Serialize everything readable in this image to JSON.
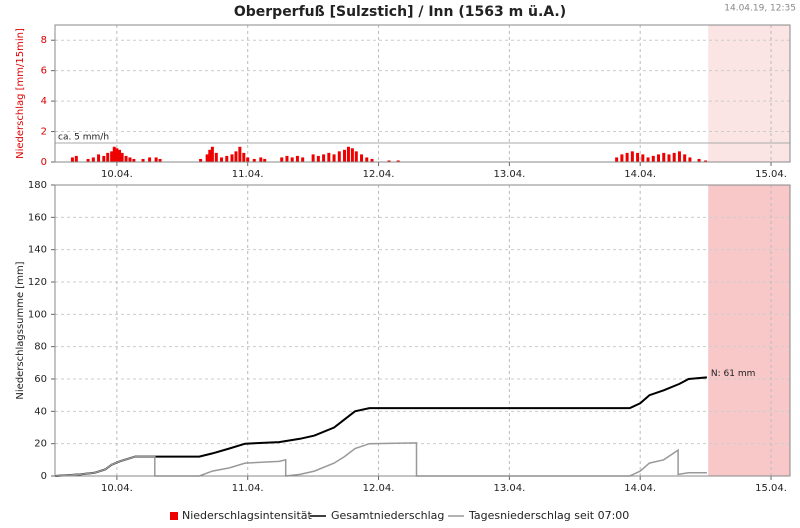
{
  "chart_data": [
    {
      "type": "bar",
      "title": "Oberperfuß [Sulzstich] / Inn (1563 m ü.A.)",
      "timestamp": "14.04.19, 12:35",
      "ylabel": "Niederschlag [mm/15min]",
      "xlim": [
        9.527,
        15.145
      ],
      "xticks": [
        {
          "value": 10,
          "label": "10.04."
        },
        {
          "value": 11,
          "label": "11.04."
        },
        {
          "value": 12,
          "label": "12.04."
        },
        {
          "value": 13,
          "label": "13.04."
        },
        {
          "value": 14,
          "label": "14.04."
        },
        {
          "value": 15,
          "label": "15.04."
        }
      ],
      "ylim": [
        0,
        9
      ],
      "yticks": [
        0,
        2,
        4,
        6,
        8
      ],
      "grid": true,
      "shade_from": 14.52,
      "shade_color": "#fbe4e4",
      "threshold": {
        "value": 1.25,
        "label": "ca. 5 mm/h"
      },
      "series": [
        {
          "name": "Niederschlagsintensität",
          "color": "#ee0000",
          "x": [
            9.66,
            9.69,
            9.78,
            9.82,
            9.86,
            9.9,
            9.93,
            9.96,
            9.98,
            10.0,
            10.02,
            10.04,
            10.07,
            10.1,
            10.13,
            10.2,
            10.25,
            10.3,
            10.33,
            10.64,
            10.69,
            10.71,
            10.73,
            10.76,
            10.8,
            10.84,
            10.88,
            10.91,
            10.94,
            10.97,
            11.0,
            11.05,
            11.1,
            11.13,
            11.26,
            11.3,
            11.34,
            11.38,
            11.42,
            11.5,
            11.54,
            11.58,
            11.62,
            11.66,
            11.7,
            11.74,
            11.77,
            11.8,
            11.83,
            11.87,
            11.91,
            11.95,
            12.08,
            12.15,
            13.82,
            13.86,
            13.9,
            13.94,
            13.98,
            14.02,
            14.06,
            14.1,
            14.14,
            14.18,
            14.22,
            14.26,
            14.3,
            14.34,
            14.38,
            14.45,
            14.5
          ],
          "values": [
            0.3,
            0.4,
            0.2,
            0.3,
            0.5,
            0.4,
            0.6,
            0.7,
            1.0,
            0.9,
            0.8,
            0.6,
            0.4,
            0.3,
            0.2,
            0.2,
            0.3,
            0.3,
            0.2,
            0.2,
            0.5,
            0.8,
            1.0,
            0.6,
            0.3,
            0.4,
            0.5,
            0.7,
            1.0,
            0.6,
            0.3,
            0.2,
            0.3,
            0.2,
            0.3,
            0.4,
            0.3,
            0.4,
            0.3,
            0.5,
            0.4,
            0.5,
            0.6,
            0.5,
            0.7,
            0.8,
            1.0,
            0.9,
            0.7,
            0.5,
            0.3,
            0.2,
            0.1,
            0.1,
            0.3,
            0.5,
            0.6,
            0.7,
            0.6,
            0.5,
            0.3,
            0.4,
            0.5,
            0.6,
            0.5,
            0.6,
            0.7,
            0.5,
            0.3,
            0.2,
            0.1
          ]
        }
      ]
    },
    {
      "type": "line",
      "ylabel": "Niederschlagssumme [mm]",
      "xlim": [
        9.527,
        15.145
      ],
      "xticks": [
        {
          "value": 10,
          "label": "10.04."
        },
        {
          "value": 11,
          "label": "11.04."
        },
        {
          "value": 12,
          "label": "12.04."
        },
        {
          "value": 13,
          "label": "13.04."
        },
        {
          "value": 14,
          "label": "14.04."
        },
        {
          "value": 15,
          "label": "15.04."
        }
      ],
      "ylim": [
        0,
        180
      ],
      "yticks": [
        0,
        20,
        40,
        60,
        80,
        100,
        120,
        140,
        160,
        180
      ],
      "grid": true,
      "shade_from": 14.52,
      "shade_color": "#f8c8c8",
      "annotation": {
        "x": 14.51,
        "y": 61,
        "text": "N: 61 mm"
      },
      "series": [
        {
          "name": "Gesamtniederschlag",
          "color": "#000000",
          "width": 2,
          "x": [
            9.527,
            9.72,
            9.83,
            9.91,
            9.96,
            10.02,
            10.1,
            10.14,
            10.63,
            10.73,
            10.86,
            10.98,
            11.24,
            11.4,
            11.51,
            11.66,
            11.74,
            11.82,
            11.93,
            13.92,
            14.0,
            14.07,
            14.18,
            14.3,
            14.37,
            14.51
          ],
          "values": [
            0,
            1,
            2,
            4,
            7,
            9,
            11,
            12,
            12,
            14,
            17,
            20,
            21,
            23,
            25,
            30,
            35,
            40,
            42,
            42,
            45,
            50,
            53,
            57,
            60,
            61
          ]
        },
        {
          "name": "Tagesniederschlag seit 07:00",
          "color": "#999999",
          "width": 1.5,
          "x": [
            9.527,
            9.72,
            9.83,
            9.91,
            9.96,
            10.02,
            10.1,
            10.14,
            10.29,
            10.29,
            10.63,
            10.73,
            10.86,
            10.98,
            11.24,
            11.29,
            11.29,
            11.4,
            11.51,
            11.66,
            11.74,
            11.82,
            11.93,
            12.29,
            12.29,
            13.92,
            14.0,
            14.07,
            14.18,
            14.29,
            14.29,
            14.37,
            14.51
          ],
          "values": [
            0,
            1,
            2,
            4,
            7,
            9,
            11,
            12,
            12,
            0,
            0,
            3,
            5,
            8,
            9,
            10,
            0,
            1,
            3,
            8,
            12,
            17,
            20,
            20.5,
            0,
            0,
            3,
            8,
            10,
            16,
            1,
            2,
            2
          ]
        }
      ]
    }
  ]
}
